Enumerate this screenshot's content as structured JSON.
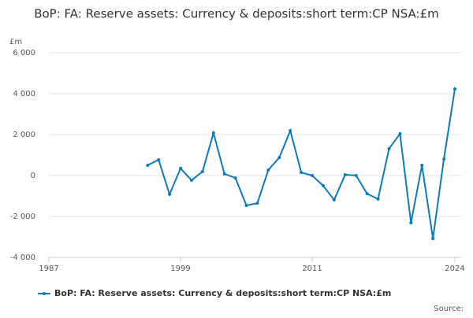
{
  "chart_data": {
    "type": "line",
    "title": "BoP: FA: Reserve assets: Currency & deposits:short term:CP NSA:£m",
    "y_unit": "£m",
    "source": "Source:",
    "x": [
      1996,
      1997,
      1998,
      1999,
      2000,
      2001,
      2002,
      2003,
      2004,
      2005,
      2006,
      2007,
      2008,
      2009,
      2010,
      2011,
      2012,
      2013,
      2014,
      2015,
      2016,
      2017,
      2018,
      2019,
      2020,
      2021,
      2022,
      2023,
      2024
    ],
    "series": [
      {
        "name": "BoP: FA: Reserve assets: Currency & deposits:short term:CP NSA:£m",
        "color": "#0f7bb5",
        "values": [
          500,
          770,
          -920,
          350,
          -230,
          190,
          2080,
          80,
          -120,
          -1460,
          -1350,
          270,
          880,
          2190,
          150,
          0,
          -500,
          -1190,
          40,
          0,
          -890,
          -1150,
          1310,
          2040,
          -2310,
          500,
          -3080,
          810,
          4230
        ]
      }
    ],
    "xlim": [
      1987,
      2024
    ],
    "xticks": [
      1987,
      1999,
      2011,
      2024
    ],
    "ylim": [
      -4000,
      6000
    ],
    "yticks": [
      {
        "value": -4000,
        "label": "-4 000"
      },
      {
        "value": -2000,
        "label": "-2 000"
      },
      0,
      {
        "value": 2000,
        "label": "2 000"
      },
      {
        "value": 4000,
        "label": "4 000"
      },
      {
        "value": 6000,
        "label": "6 000"
      }
    ],
    "grid": true
  }
}
